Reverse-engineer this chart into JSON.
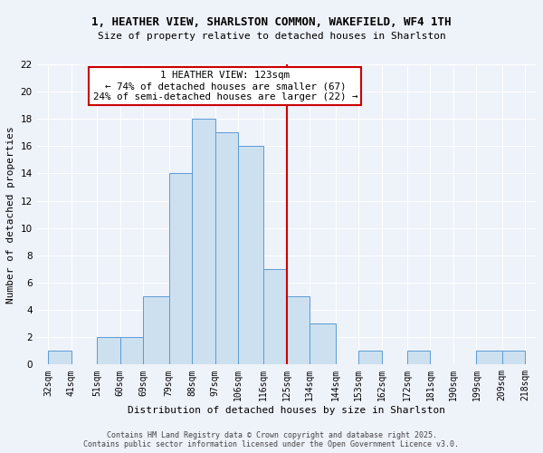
{
  "title": "1, HEATHER VIEW, SHARLSTON COMMON, WAKEFIELD, WF4 1TH",
  "subtitle": "Size of property relative to detached houses in Sharlston",
  "xlabel": "Distribution of detached houses by size in Sharlston",
  "ylabel": "Number of detached properties",
  "bin_edges": [
    32,
    41,
    51,
    60,
    69,
    79,
    88,
    97,
    106,
    116,
    125,
    134,
    144,
    153,
    162,
    172,
    181,
    190,
    199,
    209,
    218
  ],
  "counts": [
    1,
    0,
    2,
    2,
    5,
    14,
    18,
    17,
    16,
    7,
    5,
    3,
    0,
    1,
    0,
    1,
    0,
    0,
    1,
    1
  ],
  "bar_color": "#cce0f0",
  "bar_edge_color": "#5b9bd5",
  "vline_x": 125,
  "vline_color": "#cc0000",
  "annotation_title": "1 HEATHER VIEW: 123sqm",
  "annotation_line1": "← 74% of detached houses are smaller (67)",
  "annotation_line2": "24% of semi-detached houses are larger (22) →",
  "annotation_box_color": "#ffffff",
  "annotation_box_edge": "#cc0000",
  "ylim": [
    0,
    22
  ],
  "yticks": [
    0,
    2,
    4,
    6,
    8,
    10,
    12,
    14,
    16,
    18,
    20,
    22
  ],
  "tick_labels": [
    "32sqm",
    "41sqm",
    "51sqm",
    "60sqm",
    "69sqm",
    "79sqm",
    "88sqm",
    "97sqm",
    "106sqm",
    "116sqm",
    "125sqm",
    "134sqm",
    "144sqm",
    "153sqm",
    "162sqm",
    "172sqm",
    "181sqm",
    "190sqm",
    "199sqm",
    "209sqm",
    "218sqm"
  ],
  "footer1": "Contains HM Land Registry data © Crown copyright and database right 2025.",
  "footer2": "Contains public sector information licensed under the Open Government Licence v3.0.",
  "bg_color": "#eef2f9",
  "grid_color": "#ffffff",
  "ann_text_fontsize": 7.8,
  "title_fontsize": 9.0,
  "subtitle_fontsize": 8.0,
  "axis_label_fontsize": 8.0,
  "tick_fontsize": 7.0,
  "footer_fontsize": 6.0
}
